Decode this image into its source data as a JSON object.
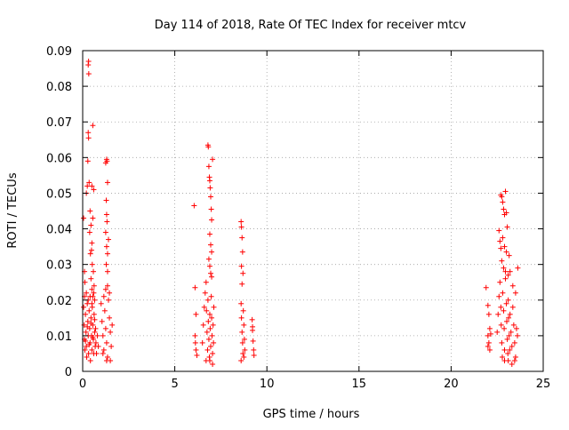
{
  "chart_data": {
    "type": "scatter",
    "title": "Day 114 of 2018, Rate Of TEC Index for receiver mtcv",
    "xlabel": "GPS time / hours",
    "ylabel": "ROTI / TECUs",
    "xlim": [
      0,
      25
    ],
    "ylim": [
      0,
      0.09
    ],
    "x_ticks": [
      0,
      5,
      10,
      15,
      20,
      25
    ],
    "y_ticks": [
      0,
      0.01,
      0.02,
      0.03,
      0.04,
      0.05,
      0.06,
      0.07,
      0.08,
      0.09
    ],
    "x_tick_labels": [
      "0",
      "5",
      "10",
      "15",
      "20",
      "25"
    ],
    "y_tick_labels": [
      "0",
      "0.01",
      "0.02",
      "0.03",
      "0.04",
      "0.05",
      "0.06",
      "0.07",
      "0.08",
      "0.09"
    ],
    "grid": true,
    "marker": "+",
    "marker_color": "#ff0000",
    "series": [
      {
        "values": [
          [
            0.05,
            0.043
          ],
          [
            0.1,
            0.028
          ],
          [
            0.12,
            0.025
          ],
          [
            0.2,
            0.05
          ],
          [
            0.25,
            0.052
          ],
          [
            0.28,
            0.059
          ],
          [
            0.3,
            0.086
          ],
          [
            0.32,
            0.087
          ],
          [
            0.33,
            0.0835
          ],
          [
            0.3,
            0.067
          ],
          [
            0.32,
            0.0655
          ],
          [
            0.35,
            0.053
          ],
          [
            0.4,
            0.045
          ],
          [
            0.45,
            0.041
          ],
          [
            0.5,
            0.052
          ],
          [
            0.55,
            0.069
          ],
          [
            0.55,
            0.043
          ],
          [
            0.5,
            0.036
          ],
          [
            0.48,
            0.034
          ],
          [
            0.52,
            0.03
          ],
          [
            0.6,
            0.051
          ],
          [
            0.45,
            0.026
          ],
          [
            0.5,
            0.023
          ],
          [
            0.55,
            0.021
          ],
          [
            0.38,
            0.039
          ],
          [
            0.42,
            0.033
          ],
          [
            0.58,
            0.028
          ],
          [
            0.62,
            0.024
          ],
          [
            0.65,
            0.02
          ],
          [
            0.05,
            0.018
          ],
          [
            0.08,
            0.013
          ],
          [
            0.1,
            0.009
          ],
          [
            0.12,
            0.006
          ],
          [
            0.15,
            0.016
          ],
          [
            0.18,
            0.011
          ],
          [
            0.2,
            0.007
          ],
          [
            0.22,
            0.004
          ],
          [
            0.25,
            0.019
          ],
          [
            0.28,
            0.014
          ],
          [
            0.3,
            0.01
          ],
          [
            0.32,
            0.005
          ],
          [
            0.35,
            0.017
          ],
          [
            0.38,
            0.012
          ],
          [
            0.4,
            0.008
          ],
          [
            0.42,
            0.003
          ],
          [
            0.45,
            0.015
          ],
          [
            0.48,
            0.01
          ],
          [
            0.5,
            0.006
          ],
          [
            0.52,
            0.018
          ],
          [
            0.55,
            0.013
          ],
          [
            0.58,
            0.009
          ],
          [
            0.6,
            0.005
          ],
          [
            0.62,
            0.016
          ],
          [
            0.65,
            0.011
          ],
          [
            0.68,
            0.007
          ],
          [
            0.7,
            0.012
          ],
          [
            0.72,
            0.008
          ],
          [
            0.75,
            0.005
          ],
          [
            0.8,
            0.01
          ],
          [
            0.85,
            0.007
          ],
          [
            0.1,
            0.021
          ],
          [
            0.2,
            0.022
          ],
          [
            0.3,
            0.02
          ],
          [
            0.4,
            0.021
          ],
          [
            0.5,
            0.019
          ],
          [
            0.6,
            0.022
          ],
          [
            0.15,
            0.0085
          ],
          [
            0.35,
            0.0075
          ],
          [
            0.55,
            0.0095
          ],
          [
            0.25,
            0.0125
          ],
          [
            0.45,
            0.0135
          ],
          [
            0.65,
            0.0145
          ],
          [
            1.0,
            0.019
          ],
          [
            1.05,
            0.014
          ],
          [
            1.1,
            0.01
          ],
          [
            1.15,
            0.006
          ],
          [
            1.2,
            0.017
          ],
          [
            1.25,
            0.012
          ],
          [
            1.3,
            0.008
          ],
          [
            1.35,
            0.004
          ],
          [
            1.4,
            0.02
          ],
          [
            1.45,
            0.015
          ],
          [
            1.5,
            0.011
          ],
          [
            1.55,
            0.007
          ],
          [
            1.6,
            0.013
          ],
          [
            1.15,
            0.021
          ],
          [
            1.25,
            0.023
          ],
          [
            1.35,
            0.024
          ],
          [
            1.45,
            0.022
          ],
          [
            1.3,
            0.003
          ],
          [
            1.5,
            0.003
          ],
          [
            1.1,
            0.005
          ],
          [
            1.25,
            0.0585
          ],
          [
            1.3,
            0.0595
          ],
          [
            1.32,
            0.059
          ],
          [
            1.35,
            0.053
          ],
          [
            1.28,
            0.048
          ],
          [
            1.3,
            0.044
          ],
          [
            1.32,
            0.042
          ],
          [
            1.25,
            0.039
          ],
          [
            1.3,
            0.035
          ],
          [
            1.35,
            0.033
          ],
          [
            1.4,
            0.037
          ],
          [
            1.28,
            0.03
          ],
          [
            1.35,
            0.028
          ],
          [
            6.05,
            0.0465
          ],
          [
            6.1,
            0.0235
          ],
          [
            6.15,
            0.016
          ],
          [
            6.1,
            0.01
          ],
          [
            6.12,
            0.008
          ],
          [
            6.15,
            0.006
          ],
          [
            6.2,
            0.0045
          ],
          [
            6.5,
            0.008
          ],
          [
            6.55,
            0.013
          ],
          [
            6.6,
            0.018
          ],
          [
            6.65,
            0.022
          ],
          [
            6.7,
            0.025
          ],
          [
            6.72,
            0.017
          ],
          [
            6.75,
            0.011
          ],
          [
            6.78,
            0.006
          ],
          [
            6.8,
            0.02
          ],
          [
            6.82,
            0.014
          ],
          [
            6.85,
            0.009
          ],
          [
            6.88,
            0.004
          ],
          [
            6.9,
            0.016
          ],
          [
            6.92,
            0.012
          ],
          [
            6.95,
            0.007
          ],
          [
            6.98,
            0.021
          ],
          [
            7.0,
            0.015
          ],
          [
            7.02,
            0.01
          ],
          [
            7.05,
            0.005
          ],
          [
            7.08,
            0.013
          ],
          [
            7.1,
            0.008
          ],
          [
            7.12,
            0.018
          ],
          [
            6.7,
            0.003
          ],
          [
            6.9,
            0.003
          ],
          [
            7.05,
            0.002
          ],
          [
            6.8,
            0.0635
          ],
          [
            6.82,
            0.063
          ],
          [
            6.85,
            0.0575
          ],
          [
            6.88,
            0.0545
          ],
          [
            6.9,
            0.0535
          ],
          [
            6.92,
            0.0515
          ],
          [
            6.95,
            0.049
          ],
          [
            6.98,
            0.0455
          ],
          [
            7.0,
            0.0425
          ],
          [
            6.9,
            0.0385
          ],
          [
            6.95,
            0.0355
          ],
          [
            7.0,
            0.0335
          ],
          [
            6.85,
            0.0315
          ],
          [
            6.9,
            0.0295
          ],
          [
            6.95,
            0.0275
          ],
          [
            7.05,
            0.0595
          ],
          [
            7.0,
            0.0265
          ],
          [
            8.6,
            0.042
          ],
          [
            8.62,
            0.0405
          ],
          [
            8.65,
            0.0375
          ],
          [
            8.68,
            0.0335
          ],
          [
            8.62,
            0.0295
          ],
          [
            8.7,
            0.0275
          ],
          [
            8.65,
            0.0245
          ],
          [
            8.6,
            0.019
          ],
          [
            8.62,
            0.015
          ],
          [
            8.65,
            0.011
          ],
          [
            8.68,
            0.008
          ],
          [
            8.7,
            0.005
          ],
          [
            8.72,
            0.017
          ],
          [
            8.75,
            0.013
          ],
          [
            8.78,
            0.009
          ],
          [
            8.8,
            0.006
          ],
          [
            8.6,
            0.003
          ],
          [
            8.75,
            0.004
          ],
          [
            9.2,
            0.0145
          ],
          [
            9.22,
            0.0115
          ],
          [
            9.25,
            0.0085
          ],
          [
            9.28,
            0.006
          ],
          [
            9.3,
            0.0045
          ],
          [
            9.22,
            0.0125
          ],
          [
            21.9,
            0.0235
          ],
          [
            22.0,
            0.0185
          ],
          [
            22.05,
            0.016
          ],
          [
            22.1,
            0.012
          ],
          [
            22.0,
            0.01
          ],
          [
            22.05,
            0.008
          ],
          [
            22.1,
            0.006
          ],
          [
            22.15,
            0.0105
          ],
          [
            22.0,
            0.007
          ],
          [
            22.5,
            0.011
          ],
          [
            22.55,
            0.016
          ],
          [
            22.6,
            0.021
          ],
          [
            22.65,
            0.025
          ],
          [
            22.7,
            0.018
          ],
          [
            22.72,
            0.013
          ],
          [
            22.75,
            0.008
          ],
          [
            22.78,
            0.004
          ],
          [
            22.8,
            0.022
          ],
          [
            22.85,
            0.017
          ],
          [
            22.88,
            0.012
          ],
          [
            22.9,
            0.006
          ],
          [
            22.95,
            0.026
          ],
          [
            23.0,
            0.019
          ],
          [
            23.02,
            0.014
          ],
          [
            23.05,
            0.009
          ],
          [
            23.08,
            0.005
          ],
          [
            23.1,
            0.02
          ],
          [
            23.12,
            0.015
          ],
          [
            23.15,
            0.01
          ],
          [
            23.18,
            0.006
          ],
          [
            23.2,
            0.016
          ],
          [
            23.25,
            0.011
          ],
          [
            23.3,
            0.007
          ],
          [
            23.35,
            0.018
          ],
          [
            23.4,
            0.013
          ],
          [
            23.45,
            0.008
          ],
          [
            23.5,
            0.004
          ],
          [
            23.55,
            0.012
          ],
          [
            23.6,
            0.01
          ],
          [
            23.1,
            0.003
          ],
          [
            23.3,
            0.002
          ],
          [
            23.45,
            0.003
          ],
          [
            22.9,
            0.003
          ],
          [
            23.2,
            0.028
          ],
          [
            23.35,
            0.024
          ],
          [
            23.5,
            0.022
          ],
          [
            23.62,
            0.029
          ],
          [
            22.7,
            0.0495
          ],
          [
            22.75,
            0.049
          ],
          [
            22.8,
            0.0475
          ],
          [
            22.85,
            0.0455
          ],
          [
            22.9,
            0.044
          ],
          [
            22.95,
            0.0505
          ],
          [
            23.0,
            0.0445
          ],
          [
            22.6,
            0.0395
          ],
          [
            22.65,
            0.0365
          ],
          [
            22.7,
            0.0345
          ],
          [
            22.8,
            0.0375
          ],
          [
            22.9,
            0.035
          ],
          [
            23.0,
            0.0335
          ],
          [
            23.05,
            0.0405
          ],
          [
            22.75,
            0.031
          ],
          [
            22.85,
            0.029
          ],
          [
            22.95,
            0.028
          ],
          [
            23.1,
            0.027
          ],
          [
            23.15,
            0.0325
          ]
        ]
      }
    ]
  }
}
